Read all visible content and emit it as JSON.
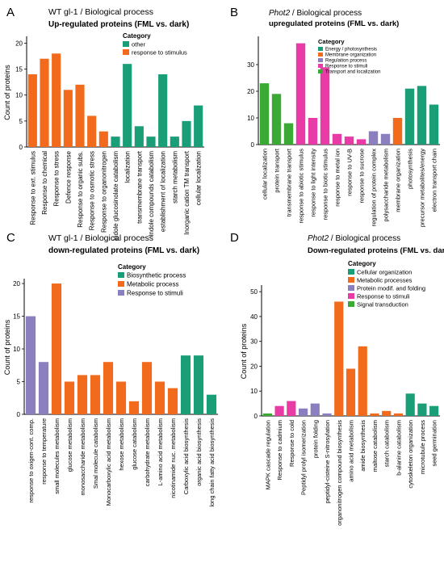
{
  "colors": {
    "green": "#1a9e77",
    "orange": "#f26a1b",
    "purple": "#8b7fbf",
    "pink": "#e93ba6",
    "lime": "#3aaa35",
    "axis": "#000000"
  },
  "chart_data": [
    {
      "panel_letter": "A",
      "type": "bar",
      "title_prefix": "",
      "title_gene": "",
      "title_rest": "WT gl-1 / Biological process",
      "subtitle": "Up-regulated proteins  (FML vs. dark)",
      "ylabel": "Count of proteins",
      "ylim": [
        0,
        21
      ],
      "yticks": [
        0,
        5,
        10,
        15,
        20
      ],
      "legend": {
        "title": "Category",
        "placement": "top-right",
        "entries": [
          {
            "label": "other",
            "color": "#1a9e77"
          },
          {
            "label": "response to stimulus",
            "color": "#f26a1b"
          }
        ]
      },
      "categories": [
        "Response to ext. stimulus",
        "Response to chemical",
        "Response to stress",
        "Defence response",
        "Response to organic subs.",
        "Response to osmotic stress",
        "Response to organonitrogen",
        "indole glucosinolate catabolism",
        "localization",
        "transmembrane transport",
        "Indole compounds catabolism",
        "establishment of localization",
        "starch metabolism",
        "Inorganic cation TM transport",
        "cellular localization"
      ],
      "values": [
        14,
        17,
        18,
        11,
        12,
        6,
        3,
        2,
        16,
        4,
        2,
        14,
        2,
        5,
        8
      ],
      "bar_colors": [
        "orange",
        "orange",
        "orange",
        "orange",
        "orange",
        "orange",
        "orange",
        "green",
        "green",
        "green",
        "green",
        "green",
        "green",
        "green",
        "green"
      ]
    },
    {
      "panel_letter": "B",
      "type": "bar",
      "title_prefix": "",
      "title_gene": "Phot2",
      "title_rest": " / Biological process",
      "subtitle": "upregulated proteins  (FML vs. dark)",
      "ylabel": "",
      "ylim": [
        0,
        40
      ],
      "yticks": [
        0,
        10,
        20,
        30
      ],
      "legend": {
        "title": "Category",
        "placement": "top",
        "entries": [
          {
            "label": "Energy / photosynthesis",
            "color": "#1a9e77"
          },
          {
            "label": "Membrane organization",
            "color": "#f26a1b"
          },
          {
            "label": "Regulation process",
            "color": "#8b7fbf"
          },
          {
            "label": "Response to stimuli",
            "color": "#e93ba6"
          },
          {
            "label": "Transport and localization",
            "color": "#3aaa35"
          }
        ]
      },
      "categories": [
        "cellular localization",
        "protein transport",
        "transmembrane transport",
        "response to abiotic stimulus",
        "response to light intensity",
        "response to biotic stimulus",
        "response to metal ion",
        "response to UV-B",
        "response to sucrose",
        "regulation of protein complex",
        "polysaccharide metabolism",
        "membrane organization",
        "photosynthesis",
        "precursor metabolites/energy",
        "electron transport chain"
      ],
      "values": [
        23,
        19,
        8,
        38,
        10,
        29,
        4,
        3,
        2,
        5,
        4,
        10,
        21,
        22,
        15
      ],
      "bar_colors": [
        "lime",
        "lime",
        "lime",
        "pink",
        "pink",
        "pink",
        "pink",
        "pink",
        "pink",
        "purple",
        "purple",
        "orange",
        "green",
        "green",
        "green"
      ]
    },
    {
      "panel_letter": "C",
      "type": "bar",
      "title_prefix": "",
      "title_gene": "",
      "title_rest": "WT gl-1 / Biological process",
      "subtitle": "down-regulated proteins  (FML vs. dark)",
      "ylabel": "Count of proteins",
      "ylim": [
        0,
        20.5
      ],
      "yticks": [
        0,
        5,
        10,
        15,
        20
      ],
      "legend": {
        "title": "Category",
        "placement": "top-right",
        "entries": [
          {
            "label": "Biosynthetic process",
            "color": "#1a9e77"
          },
          {
            "label": "Metabolic process",
            "color": "#f26a1b"
          },
          {
            "label": "Response to stimuli",
            "color": "#8b7fbf"
          }
        ]
      },
      "categories": [
        "response to oxigen-cont. comp.",
        "response to temperature",
        "small molecules metabolism",
        "glucose metabolism",
        "monosaccharide metabolism",
        "Smal molecule catabolism",
        "Monocarboxylic acid metabolism",
        "hexose metabolism",
        "glucose catabolism",
        "carbohydrate metabolism",
        "L-amino acid metabolism",
        "nicotinamide nuc. metabolism",
        "Carboxylic acid biosynthesis",
        "organic acid biosynthesis",
        "long chain fatty acid biosynthesis"
      ],
      "values": [
        15,
        8,
        20,
        5,
        6,
        6,
        8,
        5,
        2,
        8,
        5,
        4,
        9,
        9,
        3
      ],
      "bar_colors": [
        "purple",
        "purple",
        "orange",
        "orange",
        "orange",
        "orange",
        "orange",
        "orange",
        "orange",
        "orange",
        "orange",
        "orange",
        "green",
        "green",
        "green"
      ]
    },
    {
      "panel_letter": "D",
      "type": "bar",
      "title_prefix": "",
      "title_gene": "Phot2",
      "title_rest": " / Biological process",
      "subtitle": "Down-regulated proteins  (FML vs. dark)",
      "ylabel": "Count of proteins",
      "ylim": [
        0,
        52
      ],
      "yticks": [
        0,
        10,
        20,
        30,
        40,
        50
      ],
      "legend": {
        "title": "Category",
        "placement": "top-right",
        "entries": [
          {
            "label": "Cellular organization",
            "color": "#1a9e77"
          },
          {
            "label": "Metabolic processes",
            "color": "#f26a1b"
          },
          {
            "label": "Protein modif. and folding",
            "color": "#8b7fbf"
          },
          {
            "label": "Response to stimuli",
            "color": "#e93ba6"
          },
          {
            "label": "Signal transduction",
            "color": "#3aaa35"
          }
        ]
      },
      "categories": [
        "MAPK cascade regulation",
        "Response to cadmium",
        "Response to cold",
        "Peptidyl prolyl isomerization",
        "protein folding",
        "peptidyl-cisteine S-nitrosylation",
        "organonitrogen compound biosynthesis",
        "amino acid metabolism",
        "amide biosynthesis",
        "maltose catabolism",
        "starch catabolism",
        "b-alanine catabolism",
        "cytoskeleton organization",
        "microtubule process",
        "seed germination"
      ],
      "values": [
        1,
        4,
        6,
        3,
        5,
        1,
        46,
        19,
        28,
        1,
        2,
        1,
        9,
        5,
        4
      ],
      "bar_colors": [
        "lime",
        "pink",
        "pink",
        "purple",
        "purple",
        "purple",
        "orange",
        "orange",
        "orange",
        "orange",
        "orange",
        "orange",
        "green",
        "green",
        "green"
      ]
    }
  ]
}
